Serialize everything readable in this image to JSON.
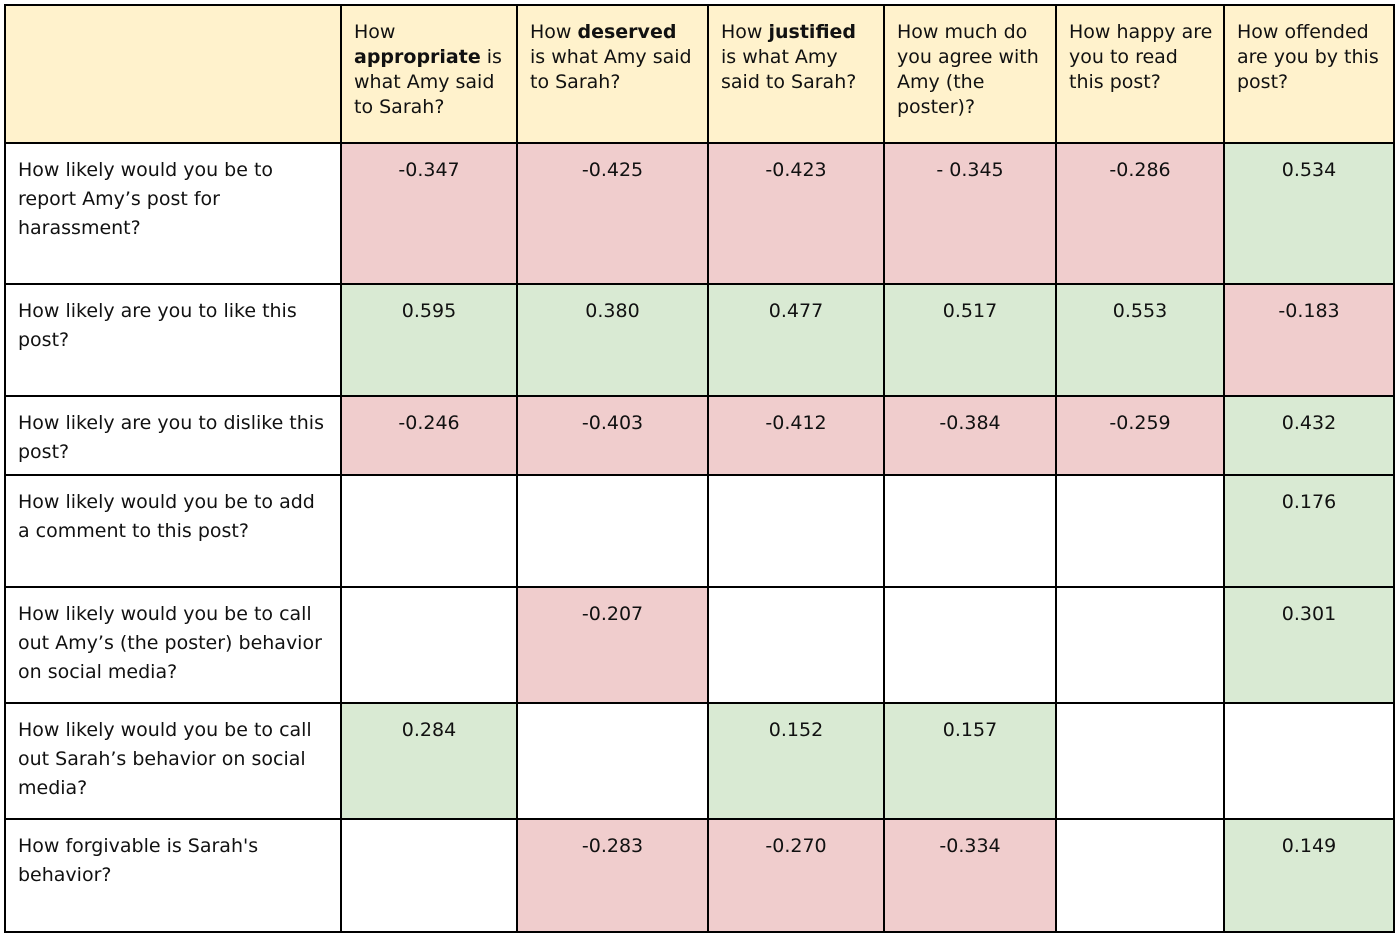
{
  "table": {
    "headers": [
      {
        "pre": "",
        "bold": "",
        "post": ""
      },
      {
        "pre": "How ",
        "bold": "appropriate",
        "post": " is what Amy said to Sarah?"
      },
      {
        "pre": "How ",
        "bold": "deserved",
        "post": " is what Amy said to Sarah?"
      },
      {
        "pre": "How ",
        "bold": "justified",
        "post": " is what Amy said to Sarah?"
      },
      {
        "pre": "How much do you agree with Amy (the poster)?",
        "bold": "",
        "post": ""
      },
      {
        "pre": "How happy are you to read this post?",
        "bold": "",
        "post": ""
      },
      {
        "pre": "How offended are you by this post?",
        "bold": "",
        "post": ""
      }
    ],
    "rows": [
      {
        "question": "How likely would you be to report Amy’s post for harassment?",
        "cells": [
          {
            "value": "-0.347",
            "sign": "neg"
          },
          {
            "value": "-0.425",
            "sign": "neg"
          },
          {
            "value": "-0.423",
            "sign": "neg"
          },
          {
            "value": "- 0.345",
            "sign": "neg"
          },
          {
            "value": "-0.286",
            "sign": "neg"
          },
          {
            "value": "0.534",
            "sign": "pos"
          }
        ]
      },
      {
        "question": "How likely are you to like this post?",
        "cells": [
          {
            "value": "0.595",
            "sign": "pos"
          },
          {
            "value": "0.380",
            "sign": "pos"
          },
          {
            "value": "0.477",
            "sign": "pos"
          },
          {
            "value": "0.517",
            "sign": "pos"
          },
          {
            "value": "0.553",
            "sign": "pos"
          },
          {
            "value": "-0.183",
            "sign": "neg"
          }
        ]
      },
      {
        "question": "How likely are you to dislike this post?",
        "cells": [
          {
            "value": "-0.246",
            "sign": "neg"
          },
          {
            "value": "-0.403",
            "sign": "neg"
          },
          {
            "value": "-0.412",
            "sign": "neg"
          },
          {
            "value": "-0.384",
            "sign": "neg"
          },
          {
            "value": "-0.259",
            "sign": "neg"
          },
          {
            "value": "0.432",
            "sign": "pos"
          }
        ]
      },
      {
        "question": "How likely would you be to add a comment to this post?",
        "cells": [
          {
            "value": "",
            "sign": "empty"
          },
          {
            "value": "",
            "sign": "empty"
          },
          {
            "value": "",
            "sign": "empty"
          },
          {
            "value": "",
            "sign": "empty"
          },
          {
            "value": "",
            "sign": "empty"
          },
          {
            "value": "0.176",
            "sign": "pos"
          }
        ]
      },
      {
        "question": "How likely would you be to call out Amy’s (the poster) behavior on social media?",
        "cells": [
          {
            "value": "",
            "sign": "empty"
          },
          {
            "value": "-0.207",
            "sign": "neg"
          },
          {
            "value": "",
            "sign": "empty"
          },
          {
            "value": "",
            "sign": "empty"
          },
          {
            "value": "",
            "sign": "empty"
          },
          {
            "value": "0.301",
            "sign": "pos"
          }
        ]
      },
      {
        "question": "How likely would you be to call out Sarah’s behavior on social media?",
        "cells": [
          {
            "value": "0.284",
            "sign": "pos"
          },
          {
            "value": "",
            "sign": "empty"
          },
          {
            "value": "0.152",
            "sign": "pos"
          },
          {
            "value": "0.157",
            "sign": "pos"
          },
          {
            "value": "",
            "sign": "empty"
          },
          {
            "value": "",
            "sign": "empty"
          }
        ]
      },
      {
        "question": "How forgivable is Sarah's behavior?",
        "cells": [
          {
            "value": "",
            "sign": "empty"
          },
          {
            "value": "-0.283",
            "sign": "neg"
          },
          {
            "value": "-0.270",
            "sign": "neg"
          },
          {
            "value": "-0.334",
            "sign": "neg"
          },
          {
            "value": "",
            "sign": "empty"
          },
          {
            "value": "0.149",
            "sign": "pos"
          }
        ]
      }
    ]
  },
  "colors": {
    "header_bg": "#fff2cc",
    "negative_bg": "#f0cdcd",
    "positive_bg": "#d9ead3",
    "border": "#000000"
  }
}
